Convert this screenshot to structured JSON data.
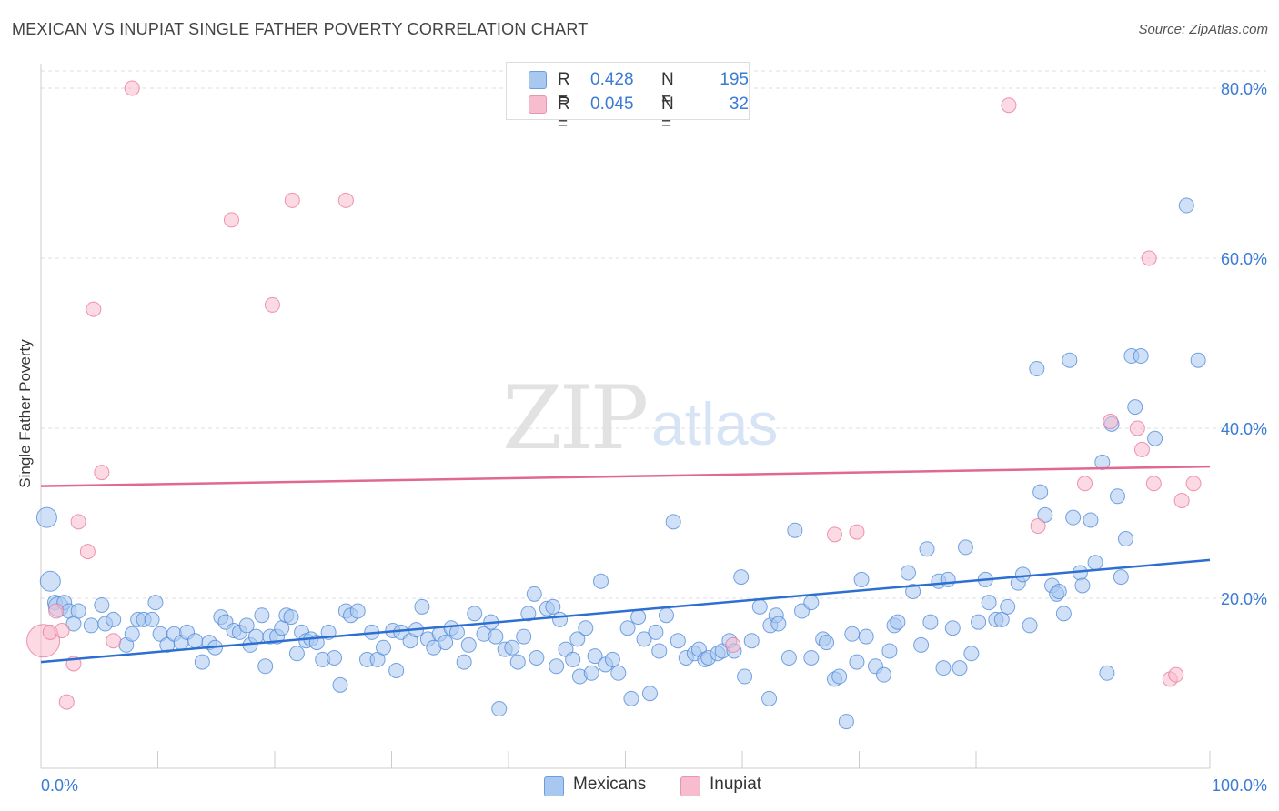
{
  "title": "MEXICAN VS INUPIAT SINGLE FATHER POVERTY CORRELATION CHART",
  "source": "Source: ZipAtlas.com",
  "watermark": {
    "zip": "ZIP",
    "atlas": "atlas"
  },
  "legend": {
    "rows": [
      {
        "r_label": "R =",
        "r_value": "0.428",
        "n_label": "N =",
        "n_value": "195",
        "color": "#a9c8f0"
      },
      {
        "r_label": "R =",
        "r_value": "0.045",
        "n_label": "N =",
        "n_value": "32",
        "color": "#f7bccd"
      }
    ]
  },
  "bottom_legend": {
    "mexicans": "Mexicans",
    "inupiat": "Inupiat"
  },
  "chart_data": {
    "type": "scatter",
    "title": "MEXICAN VS INUPIAT SINGLE FATHER POVERTY CORRELATION CHART",
    "xlabel": "",
    "ylabel": "Single Father Poverty",
    "xlim": [
      0,
      100
    ],
    "ylim": [
      0,
      82
    ],
    "x_tick_labels": [
      "0.0%",
      "100.0%"
    ],
    "y_ticks": [
      20,
      40,
      60,
      80
    ],
    "y_tick_labels": [
      "20.0%",
      "40.0%",
      "60.0%",
      "80.0%"
    ],
    "grid": "horizontal dashed",
    "colors": {
      "mexicans": "#4a86d8",
      "mexicans_fill": "#a9c8f0",
      "inupiat": "#e8739a",
      "inupiat_fill": "#f7bccd"
    },
    "series": [
      {
        "name": "Mexicans",
        "trend": {
          "x": [
            0,
            100
          ],
          "y": [
            12.5,
            24.5
          ]
        },
        "points": [
          [
            0.5,
            29.5
          ],
          [
            0.8,
            22
          ],
          [
            1.2,
            19.5
          ],
          [
            1.5,
            19
          ],
          [
            2,
            19.5
          ],
          [
            2.4,
            18.5
          ],
          [
            2.8,
            17
          ],
          [
            3.2,
            18.5
          ],
          [
            4.3,
            16.8
          ],
          [
            5.2,
            19.2
          ],
          [
            5.5,
            17
          ],
          [
            6.2,
            17.5
          ],
          [
            7.3,
            14.5
          ],
          [
            7.8,
            15.8
          ],
          [
            8.3,
            17.5
          ],
          [
            8.8,
            17.5
          ],
          [
            9.5,
            17.5
          ],
          [
            9.8,
            19.5
          ],
          [
            10.2,
            15.8
          ],
          [
            10.8,
            14.5
          ],
          [
            11.4,
            15.8
          ],
          [
            12,
            14.8
          ],
          [
            12.5,
            16
          ],
          [
            13.2,
            15
          ],
          [
            13.8,
            12.5
          ],
          [
            14.4,
            14.8
          ],
          [
            14.9,
            14.2
          ],
          [
            15.4,
            17.8
          ],
          [
            15.8,
            17.2
          ],
          [
            16.5,
            16.2
          ],
          [
            17,
            16
          ],
          [
            17.6,
            16.8
          ],
          [
            17.9,
            14.5
          ],
          [
            18.4,
            15.5
          ],
          [
            18.9,
            18
          ],
          [
            19.2,
            12
          ],
          [
            19.6,
            15.5
          ],
          [
            20.2,
            15.5
          ],
          [
            20.6,
            16.5
          ],
          [
            21,
            18
          ],
          [
            21.4,
            17.8
          ],
          [
            21.9,
            13.5
          ],
          [
            22.3,
            16
          ],
          [
            22.7,
            15
          ],
          [
            23.1,
            15.2
          ],
          [
            23.6,
            14.8
          ],
          [
            24.1,
            12.8
          ],
          [
            24.6,
            16
          ],
          [
            25.1,
            13
          ],
          [
            25.6,
            9.8
          ],
          [
            26.1,
            18.5
          ],
          [
            26.5,
            18
          ],
          [
            27.1,
            18.5
          ],
          [
            27.9,
            12.8
          ],
          [
            28.3,
            16
          ],
          [
            28.8,
            12.8
          ],
          [
            29.3,
            14.2
          ],
          [
            30.1,
            16.2
          ],
          [
            30.4,
            11.5
          ],
          [
            30.8,
            16
          ],
          [
            31.6,
            15
          ],
          [
            32.1,
            16.3
          ],
          [
            32.6,
            19
          ],
          [
            33.1,
            15.2
          ],
          [
            33.6,
            14.2
          ],
          [
            34.1,
            15.8
          ],
          [
            34.6,
            14.8
          ],
          [
            35.1,
            16.5
          ],
          [
            35.6,
            16
          ],
          [
            36.2,
            12.5
          ],
          [
            36.6,
            14.5
          ],
          [
            37.1,
            18.2
          ],
          [
            37.9,
            15.8
          ],
          [
            38.5,
            17.2
          ],
          [
            38.9,
            15.5
          ],
          [
            39.2,
            7
          ],
          [
            39.7,
            14
          ],
          [
            40.3,
            14.2
          ],
          [
            40.8,
            12.5
          ],
          [
            41.3,
            15.5
          ],
          [
            41.7,
            18.2
          ],
          [
            42.2,
            20.5
          ],
          [
            42.4,
            13
          ],
          [
            43.3,
            18.8
          ],
          [
            43.8,
            19
          ],
          [
            44.1,
            12
          ],
          [
            44.4,
            17.5
          ],
          [
            44.9,
            14
          ],
          [
            45.5,
            12.8
          ],
          [
            45.9,
            15.2
          ],
          [
            46.1,
            10.8
          ],
          [
            46.6,
            16.5
          ],
          [
            47.1,
            11.2
          ],
          [
            47.4,
            13.2
          ],
          [
            47.9,
            22
          ],
          [
            48.3,
            12.2
          ],
          [
            48.9,
            12.8
          ],
          [
            49.4,
            11.2
          ],
          [
            50.2,
            16.5
          ],
          [
            50.5,
            8.2
          ],
          [
            51.1,
            17.8
          ],
          [
            51.6,
            15.2
          ],
          [
            52.1,
            8.8
          ],
          [
            52.6,
            16
          ],
          [
            52.9,
            13.8
          ],
          [
            53.5,
            18
          ],
          [
            54.1,
            29
          ],
          [
            54.5,
            15
          ],
          [
            55.2,
            13
          ],
          [
            55.9,
            13.5
          ],
          [
            56.3,
            14
          ],
          [
            56.8,
            12.8
          ],
          [
            57.1,
            13
          ],
          [
            57.9,
            13.5
          ],
          [
            58.3,
            13.8
          ],
          [
            58.9,
            15
          ],
          [
            59.3,
            13.8
          ],
          [
            59.9,
            22.5
          ],
          [
            60.2,
            10.8
          ],
          [
            60.8,
            15
          ],
          [
            61.5,
            19
          ],
          [
            62.3,
            8.2
          ],
          [
            62.4,
            16.8
          ],
          [
            62.9,
            18
          ],
          [
            63.1,
            17
          ],
          [
            64,
            13
          ],
          [
            64.5,
            28
          ],
          [
            65.1,
            18.5
          ],
          [
            65.9,
            19.5
          ],
          [
            65.9,
            13
          ],
          [
            66.9,
            15.2
          ],
          [
            67.2,
            14.8
          ],
          [
            67.9,
            10.5
          ],
          [
            68.3,
            10.8
          ],
          [
            68.9,
            5.5
          ],
          [
            69.4,
            15.8
          ],
          [
            69.8,
            12.5
          ],
          [
            70.2,
            22.2
          ],
          [
            70.6,
            15.5
          ],
          [
            71.4,
            12
          ],
          [
            72.1,
            11
          ],
          [
            72.6,
            13.8
          ],
          [
            73,
            16.8
          ],
          [
            73.3,
            17.2
          ],
          [
            74.2,
            23
          ],
          [
            74.6,
            20.8
          ],
          [
            75.3,
            14.5
          ],
          [
            75.8,
            25.8
          ],
          [
            76.1,
            17.2
          ],
          [
            76.8,
            22
          ],
          [
            77.2,
            11.8
          ],
          [
            77.6,
            22.2
          ],
          [
            78,
            16.5
          ],
          [
            78.6,
            11.8
          ],
          [
            79.1,
            26
          ],
          [
            79.6,
            13.5
          ],
          [
            80.2,
            17.2
          ],
          [
            80.8,
            22.2
          ],
          [
            81.1,
            19.5
          ],
          [
            81.7,
            17.5
          ],
          [
            82.2,
            17.5
          ],
          [
            82.7,
            19
          ],
          [
            83.6,
            21.8
          ],
          [
            84,
            22.8
          ],
          [
            84.6,
            16.8
          ],
          [
            85.2,
            47
          ],
          [
            85.5,
            32.5
          ],
          [
            85.9,
            29.8
          ],
          [
            86.5,
            21.5
          ],
          [
            86.9,
            20.5
          ],
          [
            87.1,
            20.8
          ],
          [
            87.5,
            18.2
          ],
          [
            88,
            48
          ],
          [
            88.3,
            29.5
          ],
          [
            88.9,
            23
          ],
          [
            89.1,
            21.5
          ],
          [
            89.8,
            29.2
          ],
          [
            90.2,
            24.2
          ],
          [
            90.8,
            36
          ],
          [
            91.2,
            11.2
          ],
          [
            91.6,
            40.5
          ],
          [
            92.1,
            32
          ],
          [
            92.4,
            22.5
          ],
          [
            92.8,
            27
          ],
          [
            93.3,
            48.5
          ],
          [
            93.6,
            42.5
          ],
          [
            94.1,
            48.5
          ],
          [
            95.3,
            38.8
          ],
          [
            98,
            66.2
          ],
          [
            99,
            48
          ]
        ],
        "big_points": [
          [
            0.5,
            29.5
          ],
          [
            0.8,
            22
          ],
          [
            1.5,
            19
          ]
        ]
      },
      {
        "name": "Inupiat",
        "trend": {
          "x": [
            0,
            100
          ],
          "y": [
            33.2,
            35.5
          ]
        },
        "points": [
          [
            0.2,
            15
          ],
          [
            0.8,
            16
          ],
          [
            1.3,
            18.5
          ],
          [
            1.8,
            16.2
          ],
          [
            2.2,
            7.8
          ],
          [
            2.8,
            12.3
          ],
          [
            3.2,
            29
          ],
          [
            4,
            25.5
          ],
          [
            4.5,
            54
          ],
          [
            5.2,
            34.8
          ],
          [
            6.2,
            15
          ],
          [
            7.8,
            80
          ],
          [
            16.3,
            64.5
          ],
          [
            19.8,
            54.5
          ],
          [
            21.5,
            66.8
          ],
          [
            26.1,
            66.8
          ],
          [
            59.2,
            14.5
          ],
          [
            67.9,
            27.5
          ],
          [
            69.8,
            27.8
          ],
          [
            82.8,
            78
          ],
          [
            85.3,
            28.5
          ],
          [
            89.3,
            33.5
          ],
          [
            91.5,
            40.8
          ],
          [
            93.8,
            40
          ],
          [
            94.2,
            37.5
          ],
          [
            94.8,
            60
          ],
          [
            95.2,
            33.5
          ],
          [
            96.6,
            10.5
          ],
          [
            97.1,
            11
          ],
          [
            97.6,
            31.5
          ],
          [
            98.6,
            33.5
          ]
        ],
        "big_points": [
          [
            0.2,
            15
          ]
        ]
      }
    ]
  }
}
